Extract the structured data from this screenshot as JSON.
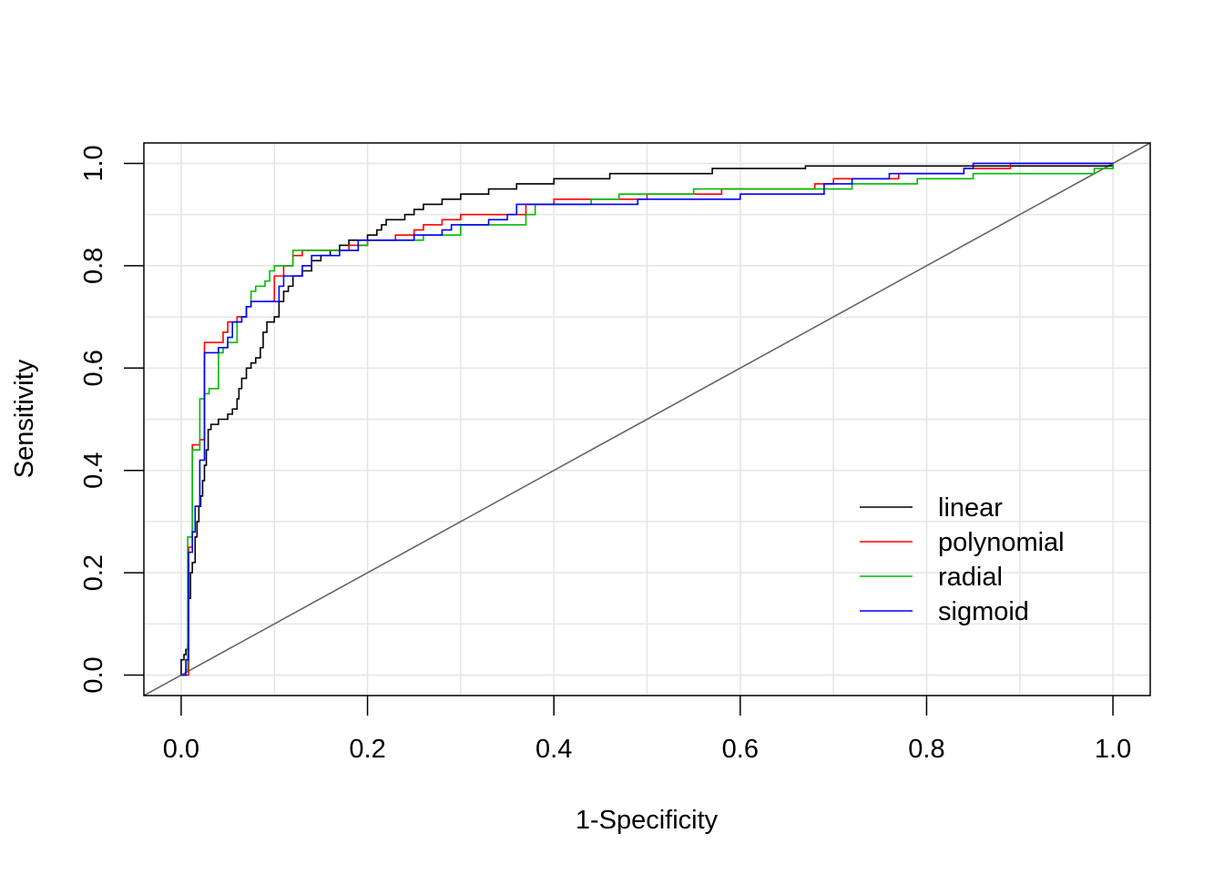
{
  "chart_data": {
    "type": "line",
    "xlabel": "1-Specificity",
    "ylabel": "Sensitivity",
    "xlim": [
      -0.04,
      1.04
    ],
    "ylim": [
      -0.04,
      1.04
    ],
    "x_ticks": [
      "0.0",
      "0.2",
      "0.4",
      "0.6",
      "0.8",
      "1.0"
    ],
    "y_ticks": [
      "0.0",
      "0.2",
      "0.4",
      "0.6",
      "0.8",
      "1.0"
    ],
    "grid": true,
    "legend_position": "bottom-right",
    "reference_line": {
      "from": [
        0,
        0
      ],
      "to": [
        1,
        1
      ],
      "color": "#666666"
    },
    "series": [
      {
        "name": "linear",
        "color": "#000000",
        "points": [
          [
            0,
            0
          ],
          [
            0,
            0.03
          ],
          [
            0.003,
            0.03
          ],
          [
            0.003,
            0.04
          ],
          [
            0.005,
            0.05
          ],
          [
            0.007,
            0.06
          ],
          [
            0.008,
            0.15
          ],
          [
            0.01,
            0.2
          ],
          [
            0.012,
            0.22
          ],
          [
            0.015,
            0.27
          ],
          [
            0.017,
            0.3
          ],
          [
            0.019,
            0.33
          ],
          [
            0.021,
            0.35
          ],
          [
            0.023,
            0.38
          ],
          [
            0.025,
            0.41
          ],
          [
            0.027,
            0.44
          ],
          [
            0.029,
            0.48
          ],
          [
            0.032,
            0.49
          ],
          [
            0.04,
            0.5
          ],
          [
            0.05,
            0.51
          ],
          [
            0.055,
            0.52
          ],
          [
            0.06,
            0.54
          ],
          [
            0.062,
            0.56
          ],
          [
            0.065,
            0.58
          ],
          [
            0.07,
            0.6
          ],
          [
            0.075,
            0.61
          ],
          [
            0.08,
            0.62
          ],
          [
            0.085,
            0.64
          ],
          [
            0.088,
            0.67
          ],
          [
            0.092,
            0.69
          ],
          [
            0.1,
            0.7
          ],
          [
            0.105,
            0.73
          ],
          [
            0.11,
            0.75
          ],
          [
            0.115,
            0.76
          ],
          [
            0.12,
            0.78
          ],
          [
            0.13,
            0.79
          ],
          [
            0.14,
            0.81
          ],
          [
            0.15,
            0.82
          ],
          [
            0.16,
            0.83
          ],
          [
            0.17,
            0.84
          ],
          [
            0.18,
            0.85
          ],
          [
            0.2,
            0.86
          ],
          [
            0.21,
            0.87
          ],
          [
            0.215,
            0.88
          ],
          [
            0.22,
            0.89
          ],
          [
            0.24,
            0.9
          ],
          [
            0.25,
            0.91
          ],
          [
            0.26,
            0.92
          ],
          [
            0.28,
            0.93
          ],
          [
            0.3,
            0.94
          ],
          [
            0.33,
            0.95
          ],
          [
            0.36,
            0.96
          ],
          [
            0.4,
            0.97
          ],
          [
            0.46,
            0.98
          ],
          [
            0.57,
            0.99
          ],
          [
            0.63,
            0.99
          ],
          [
            0.67,
            0.995
          ],
          [
            1,
            1
          ]
        ]
      },
      {
        "name": "polynomial",
        "color": "#ff0000",
        "points": [
          [
            0,
            0
          ],
          [
            0.008,
            0.25
          ],
          [
            0.012,
            0.45
          ],
          [
            0.02,
            0.46
          ],
          [
            0.025,
            0.65
          ],
          [
            0.04,
            0.65
          ],
          [
            0.045,
            0.67
          ],
          [
            0.05,
            0.69
          ],
          [
            0.06,
            0.7
          ],
          [
            0.07,
            0.72
          ],
          [
            0.075,
            0.73
          ],
          [
            0.09,
            0.73
          ],
          [
            0.1,
            0.78
          ],
          [
            0.11,
            0.8
          ],
          [
            0.12,
            0.82
          ],
          [
            0.13,
            0.83
          ],
          [
            0.17,
            0.83
          ],
          [
            0.18,
            0.84
          ],
          [
            0.2,
            0.85
          ],
          [
            0.23,
            0.86
          ],
          [
            0.25,
            0.87
          ],
          [
            0.26,
            0.88
          ],
          [
            0.28,
            0.89
          ],
          [
            0.3,
            0.9
          ],
          [
            0.33,
            0.9
          ],
          [
            0.37,
            0.92
          ],
          [
            0.4,
            0.93
          ],
          [
            0.44,
            0.93
          ],
          [
            0.5,
            0.94
          ],
          [
            0.56,
            0.94
          ],
          [
            0.58,
            0.95
          ],
          [
            0.68,
            0.96
          ],
          [
            0.7,
            0.97
          ],
          [
            0.77,
            0.98
          ],
          [
            0.84,
            0.99
          ],
          [
            0.89,
            1
          ],
          [
            1,
            1
          ]
        ]
      },
      {
        "name": "radial",
        "color": "#00bb00",
        "points": [
          [
            0,
            0
          ],
          [
            0.005,
            0.01
          ],
          [
            0.007,
            0.27
          ],
          [
            0.01,
            0.27
          ],
          [
            0.012,
            0.44
          ],
          [
            0.018,
            0.44
          ],
          [
            0.02,
            0.54
          ],
          [
            0.025,
            0.55
          ],
          [
            0.03,
            0.56
          ],
          [
            0.035,
            0.56
          ],
          [
            0.04,
            0.63
          ],
          [
            0.045,
            0.64
          ],
          [
            0.05,
            0.65
          ],
          [
            0.055,
            0.65
          ],
          [
            0.06,
            0.69
          ],
          [
            0.065,
            0.7
          ],
          [
            0.07,
            0.72
          ],
          [
            0.075,
            0.75
          ],
          [
            0.08,
            0.76
          ],
          [
            0.09,
            0.77
          ],
          [
            0.095,
            0.79
          ],
          [
            0.1,
            0.8
          ],
          [
            0.12,
            0.8
          ],
          [
            0.12,
            0.83
          ],
          [
            0.18,
            0.83
          ],
          [
            0.19,
            0.84
          ],
          [
            0.2,
            0.85
          ],
          [
            0.24,
            0.85
          ],
          [
            0.26,
            0.86
          ],
          [
            0.3,
            0.88
          ],
          [
            0.37,
            0.9
          ],
          [
            0.38,
            0.92
          ],
          [
            0.44,
            0.93
          ],
          [
            0.47,
            0.94
          ],
          [
            0.54,
            0.94
          ],
          [
            0.55,
            0.95
          ],
          [
            0.7,
            0.95
          ],
          [
            0.72,
            0.96
          ],
          [
            0.79,
            0.97
          ],
          [
            0.85,
            0.98
          ],
          [
            0.98,
            0.99
          ],
          [
            1,
            1
          ]
        ]
      },
      {
        "name": "sigmoid",
        "color": "#0000ff",
        "points": [
          [
            0,
            0
          ],
          [
            0.005,
            0.03
          ],
          [
            0.008,
            0.24
          ],
          [
            0.012,
            0.28
          ],
          [
            0.015,
            0.33
          ],
          [
            0.02,
            0.42
          ],
          [
            0.025,
            0.48
          ],
          [
            0.025,
            0.63
          ],
          [
            0.035,
            0.63
          ],
          [
            0.04,
            0.64
          ],
          [
            0.05,
            0.66
          ],
          [
            0.055,
            0.69
          ],
          [
            0.065,
            0.7
          ],
          [
            0.07,
            0.72
          ],
          [
            0.075,
            0.73
          ],
          [
            0.1,
            0.73
          ],
          [
            0.105,
            0.76
          ],
          [
            0.11,
            0.78
          ],
          [
            0.13,
            0.8
          ],
          [
            0.14,
            0.82
          ],
          [
            0.17,
            0.83
          ],
          [
            0.19,
            0.85
          ],
          [
            0.23,
            0.85
          ],
          [
            0.25,
            0.86
          ],
          [
            0.28,
            0.87
          ],
          [
            0.29,
            0.88
          ],
          [
            0.33,
            0.89
          ],
          [
            0.35,
            0.9
          ],
          [
            0.36,
            0.92
          ],
          [
            0.4,
            0.92
          ],
          [
            0.45,
            0.92
          ],
          [
            0.49,
            0.93
          ],
          [
            0.55,
            0.93
          ],
          [
            0.6,
            0.94
          ],
          [
            0.68,
            0.94
          ],
          [
            0.69,
            0.96
          ],
          [
            0.72,
            0.97
          ],
          [
            0.76,
            0.98
          ],
          [
            0.84,
            0.99
          ],
          [
            0.85,
            1
          ],
          [
            1,
            1
          ]
        ]
      }
    ]
  }
}
